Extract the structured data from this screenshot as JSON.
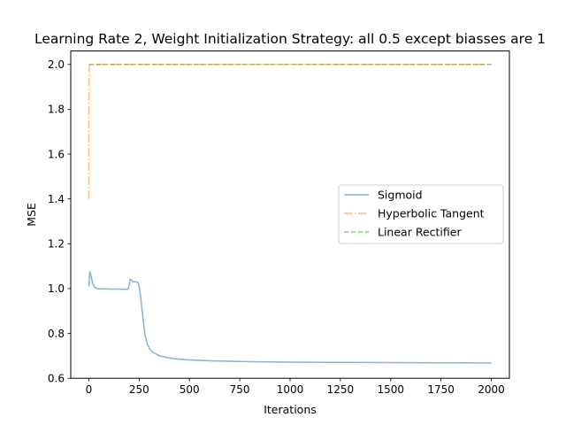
{
  "chart_data": {
    "type": "line",
    "title": "Learning Rate 2, Weight Initialization Strategy: all 0.5 except biasses are 1",
    "xlabel": "Iterations",
    "ylabel": "MSE",
    "xlim": [
      -90,
      2090
    ],
    "ylim": [
      0.6,
      2.06
    ],
    "x_ticks": [
      0,
      250,
      500,
      750,
      1000,
      1250,
      1500,
      1750,
      2000
    ],
    "y_ticks": [
      0.6,
      0.8,
      1.0,
      1.2,
      1.4,
      1.6,
      1.8,
      2.0
    ],
    "x_tick_labels": [
      "0",
      "250",
      "500",
      "750",
      "1000",
      "1250",
      "1500",
      "1750",
      "2000"
    ],
    "y_tick_labels": [
      "0.6",
      "0.8",
      "1.0",
      "1.2",
      "1.4",
      "1.6",
      "1.8",
      "2.0"
    ],
    "grid": false,
    "legend_position": "center-right",
    "series": [
      {
        "name": "Sigmoid",
        "color": "#1f77b4",
        "dash": "solid",
        "x": [
          0,
          5,
          10,
          20,
          30,
          40,
          60,
          80,
          100,
          120,
          150,
          180,
          195,
          200,
          205,
          210,
          215,
          220,
          230,
          240,
          245,
          250,
          255,
          260,
          265,
          270,
          275,
          280,
          290,
          300,
          310,
          320,
          340,
          360,
          380,
          400,
          450,
          500,
          600,
          700,
          800,
          1000,
          1200,
          1500,
          1750,
          2000
        ],
        "y": [
          1.01,
          1.075,
          1.06,
          1.02,
          1.005,
          1.0,
          0.999,
          0.999,
          0.998,
          0.998,
          0.998,
          0.997,
          0.998,
          1.015,
          1.04,
          1.04,
          1.035,
          1.03,
          1.03,
          1.03,
          1.025,
          1.01,
          0.98,
          0.94,
          0.9,
          0.86,
          0.82,
          0.79,
          0.755,
          0.735,
          0.723,
          0.715,
          0.705,
          0.698,
          0.694,
          0.69,
          0.685,
          0.682,
          0.678,
          0.676,
          0.674,
          0.672,
          0.671,
          0.67,
          0.669,
          0.668
        ]
      },
      {
        "name": "Hyperbolic Tangent",
        "color": "#ff7f0e",
        "dash": "dashdot",
        "x": [
          0,
          0.5,
          1,
          2,
          3,
          5,
          10,
          50,
          100,
          250,
          500,
          750,
          1000,
          1250,
          1500,
          1750,
          2000
        ],
        "y": [
          1.4,
          1.75,
          1.95,
          1.99,
          1.995,
          1.998,
          1.999,
          2.0,
          2.0,
          2.0,
          2.0,
          2.0,
          2.0,
          2.0,
          2.0,
          2.0,
          2.0
        ]
      },
      {
        "name": "Linear Rectifier",
        "color": "#2ca02c",
        "dash": "dashed",
        "x": [
          0,
          250,
          500,
          750,
          1000,
          1250,
          1500,
          1750,
          2000
        ],
        "y": [
          2.0,
          2.0,
          2.0,
          2.0,
          2.0,
          2.0,
          2.0,
          2.0,
          2.0
        ]
      }
    ]
  }
}
